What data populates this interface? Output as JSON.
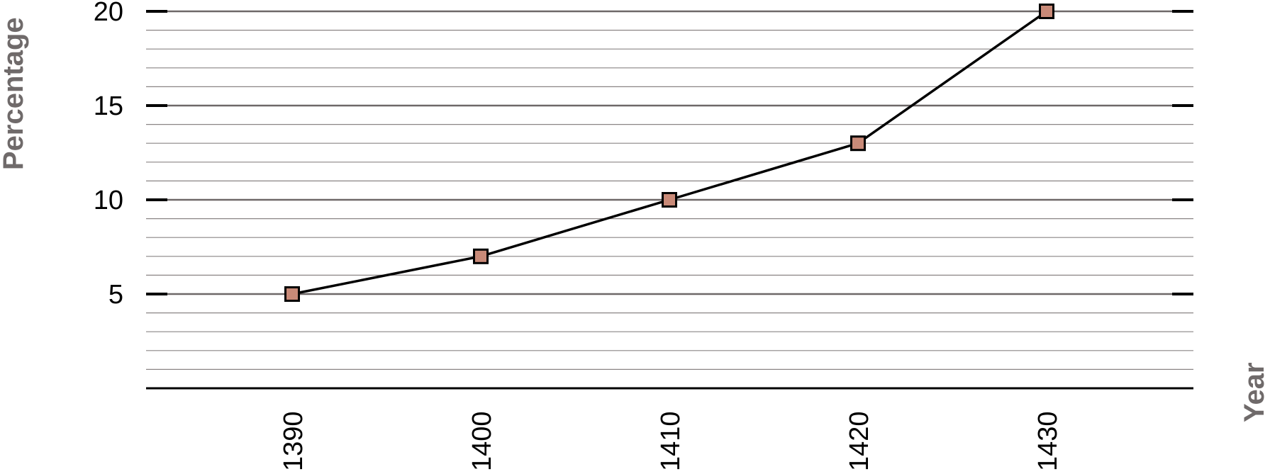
{
  "chart_data": {
    "type": "line",
    "title": "",
    "xlabel": "Year",
    "ylabel": "Percentage",
    "categories": [
      "1390",
      "1400",
      "1410",
      "1420",
      "1430"
    ],
    "series": [
      {
        "values": [
          5,
          7,
          10,
          13,
          20
        ],
        "marker": "square",
        "marker_color": "#c98a78",
        "line_color": "#000000"
      }
    ],
    "ylim": [
      0,
      20
    ],
    "yticks": [
      "5",
      "10",
      "15",
      "20"
    ],
    "grid": true,
    "legend": "none"
  }
}
